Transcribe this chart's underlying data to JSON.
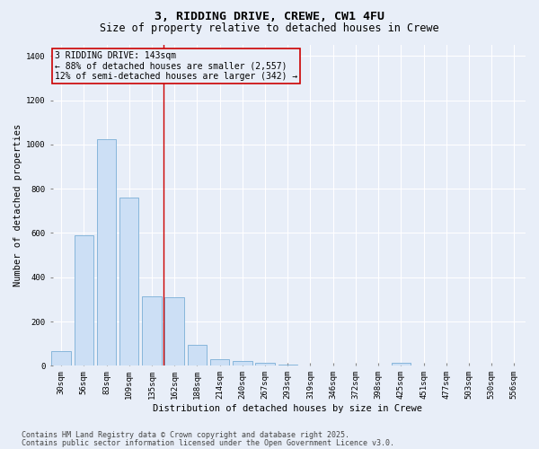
{
  "title_line1": "3, RIDDING DRIVE, CREWE, CW1 4FU",
  "title_line2": "Size of property relative to detached houses in Crewe",
  "xlabel": "Distribution of detached houses by size in Crewe",
  "ylabel": "Number of detached properties",
  "categories": [
    "30sqm",
    "56sqm",
    "83sqm",
    "109sqm",
    "135sqm",
    "162sqm",
    "188sqm",
    "214sqm",
    "240sqm",
    "267sqm",
    "293sqm",
    "319sqm",
    "346sqm",
    "372sqm",
    "398sqm",
    "425sqm",
    "451sqm",
    "477sqm",
    "503sqm",
    "530sqm",
    "556sqm"
  ],
  "values": [
    68,
    590,
    1025,
    760,
    315,
    310,
    95,
    30,
    20,
    12,
    5,
    0,
    0,
    0,
    0,
    15,
    0,
    0,
    0,
    0,
    0
  ],
  "bar_color": "#ccdff5",
  "bar_edge_color": "#7aaed6",
  "vline_x": 4.5,
  "vline_color": "#cc0000",
  "annotation_text": "3 RIDDING DRIVE: 143sqm\n← 88% of detached houses are smaller (2,557)\n12% of semi-detached houses are larger (342) →",
  "annotation_box_color": "#cc0000",
  "ylim": [
    0,
    1450
  ],
  "yticks": [
    0,
    200,
    400,
    600,
    800,
    1000,
    1200,
    1400
  ],
  "background_color": "#e8eef8",
  "grid_color": "#ffffff",
  "footer_line1": "Contains HM Land Registry data © Crown copyright and database right 2025.",
  "footer_line2": "Contains public sector information licensed under the Open Government Licence v3.0.",
  "title_fontsize": 9.5,
  "subtitle_fontsize": 8.5,
  "axis_label_fontsize": 7.5,
  "tick_fontsize": 6.5,
  "annotation_fontsize": 7,
  "footer_fontsize": 6
}
